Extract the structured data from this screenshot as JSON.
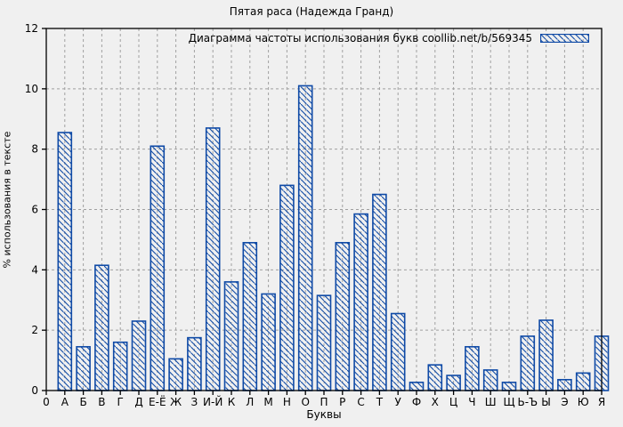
{
  "chart_data": {
    "type": "bar",
    "title": "Пятая раса (Надежда Гранд)",
    "legend": "Диаграмма частоты использования букв coollib.net/b/569345",
    "xlabel": "Буквы",
    "ylabel": "% использования в тексте",
    "origin_tick_label": "0",
    "categories": [
      "А",
      "Б",
      "В",
      "Г",
      "Д",
      "Е-Ё",
      "Ж",
      "З",
      "И-Й",
      "К",
      "Л",
      "М",
      "Н",
      "О",
      "П",
      "Р",
      "С",
      "Т",
      "У",
      "Ф",
      "Х",
      "Ц",
      "Ч",
      "Ш",
      "Щ",
      "Ь-Ъ",
      "Ы",
      "Э",
      "Ю",
      "Я"
    ],
    "values": [
      8.55,
      1.45,
      4.15,
      1.6,
      2.3,
      8.1,
      1.05,
      1.75,
      8.7,
      3.6,
      4.9,
      3.2,
      6.8,
      10.1,
      3.15,
      4.9,
      5.85,
      6.5,
      2.55,
      0.27,
      0.85,
      0.5,
      1.45,
      0.68,
      0.27,
      1.8,
      2.33,
      0.36,
      0.58,
      1.8
    ],
    "ylim": [
      0,
      12
    ],
    "yticks": [
      0,
      2,
      4,
      6,
      8,
      10,
      12
    ],
    "grid": true,
    "legend_position": "top-right",
    "colors": {
      "bar_stroke": "#0f4aa6",
      "background": "#f0f0f0",
      "grid": "#a0a0a0",
      "axis": "#000000",
      "text": "#000000"
    }
  }
}
